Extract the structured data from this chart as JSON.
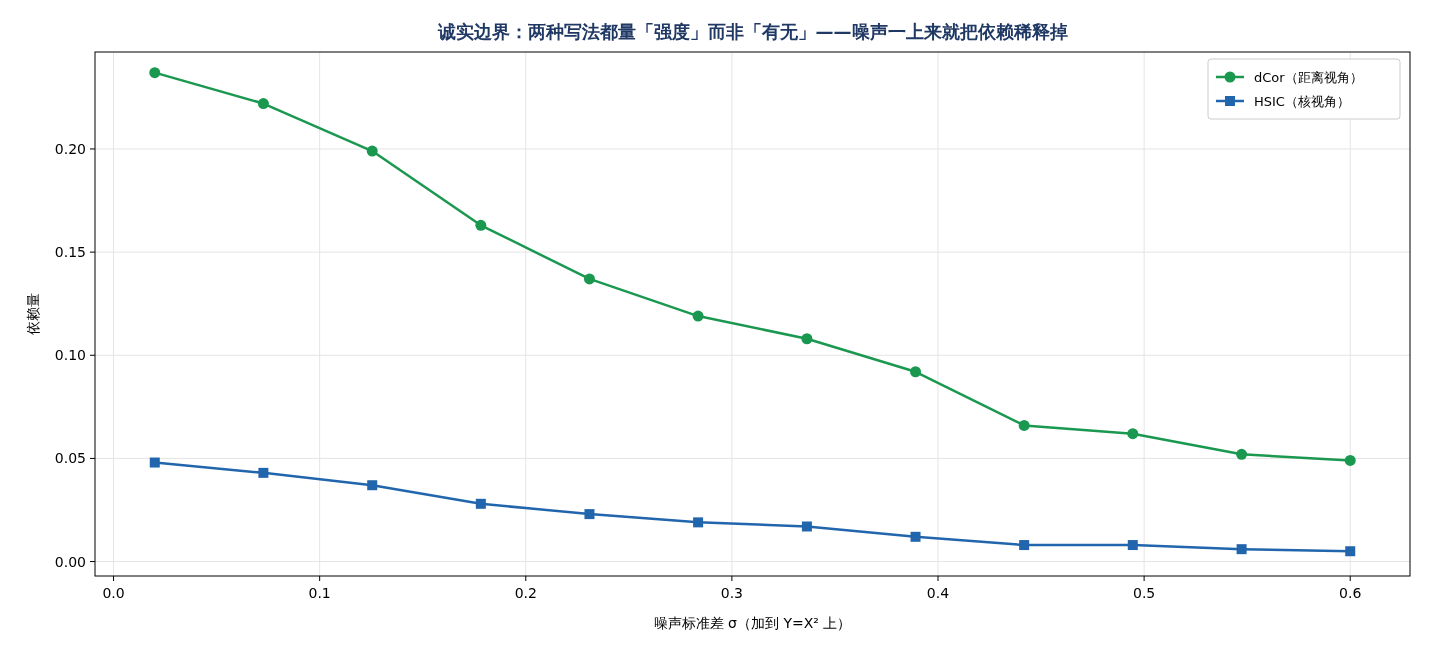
{
  "chart_data": {
    "type": "line",
    "title": "诚实边界：两种写法都量「强度」而非「有无」——噪声一上来就把依赖稀释掉",
    "xlabel": "噪声标准差 σ（加到 Y=X² 上）",
    "ylabel": "依赖量",
    "x": [
      0.02,
      0.0727,
      0.1255,
      0.1782,
      0.2309,
      0.2836,
      0.3364,
      0.3891,
      0.4418,
      0.4945,
      0.5473,
      0.6
    ],
    "series": [
      {
        "name": "dCor（距离视角）",
        "color": "#1a9850",
        "marker": "circle",
        "values": [
          0.237,
          0.222,
          0.199,
          0.163,
          0.137,
          0.119,
          0.108,
          0.092,
          0.066,
          0.062,
          0.052,
          0.049
        ]
      },
      {
        "name": "HSIC（核视角）",
        "color": "#2166ac",
        "marker": "square",
        "values": [
          0.048,
          0.043,
          0.037,
          0.028,
          0.023,
          0.019,
          0.017,
          0.012,
          0.008,
          0.008,
          0.006,
          0.005
        ]
      }
    ],
    "xlim": [
      -0.009,
      0.629
    ],
    "ylim": [
      -0.007,
      0.247
    ],
    "xticks": [
      {
        "value": 0,
        "label": "0.0"
      },
      0.1,
      0.2,
      0.3,
      0.4,
      0.5,
      0.6
    ],
    "yticks": [
      {
        "value": 0,
        "label": "0.00"
      },
      {
        "value": 0.05,
        "label": "0.05"
      },
      {
        "value": 0.1,
        "label": "0.10"
      },
      {
        "value": 0.15,
        "label": "0.15"
      },
      {
        "value": 0.2,
        "label": "0.20"
      }
    ],
    "grid": true,
    "legend": "top right"
  }
}
